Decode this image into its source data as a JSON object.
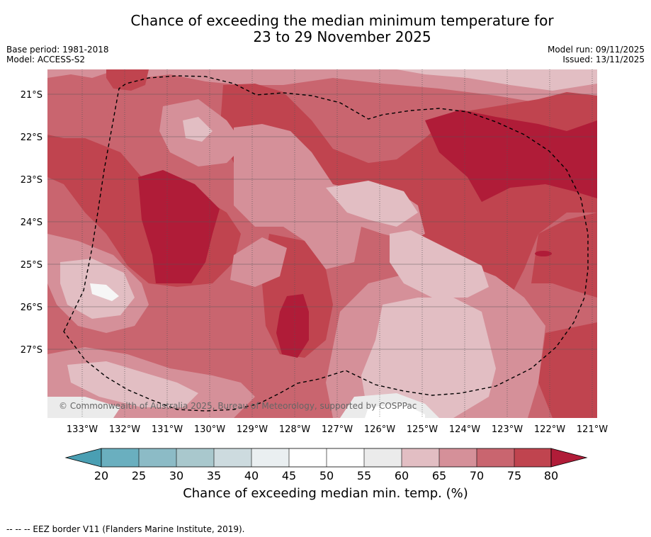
{
  "title_line1": "Chance of exceeding the median minimum temperature for",
  "title_line2": "23 to 29 November 2025",
  "base_period": "Base period: 1981-2018",
  "model": "Model: ACCESS-S2",
  "model_run": "Model run: 09/11/2025",
  "issued": "Issued: 13/11/2025",
  "copyright": "© Commonwealth of Australia 2025, Bureau of Meteorology, supported by COSPPac",
  "colorbar_label": "Chance of exceeding median min. temp. (%)",
  "footer": "--  --  -- EEZ border V11 (Flanders Marine Institute, 2019).",
  "lat_labels": [
    "21°S",
    "22°S",
    "23°S",
    "24°S",
    "25°S",
    "26°S",
    "27°S"
  ],
  "lon_labels": [
    "133°W",
    "132°W",
    "131°W",
    "130°W",
    "129°W",
    "128°W",
    "127°W",
    "126°W",
    "125°W",
    "124°W",
    "123°W",
    "122°W",
    "121°W"
  ],
  "colorbar_ticks": [
    "20",
    "25",
    "30",
    "35",
    "40",
    "45",
    "50",
    "55",
    "60",
    "65",
    "70",
    "75",
    "80"
  ],
  "colors": {
    "c20": "#4a9fb3",
    "c25": "#6aafbf",
    "c30": "#8cbbc6",
    "c35": "#a9c8cd",
    "c40": "#cddbdf",
    "c45": "#eaeff1",
    "c50": "#ffffff",
    "c55": "#ffffff",
    "c60": "#ebebeb",
    "c65": "#e2bec3",
    "c70": "#d59099",
    "c75": "#c9656f",
    "c80": "#c0444f",
    "cmax": "#b01c38"
  }
}
